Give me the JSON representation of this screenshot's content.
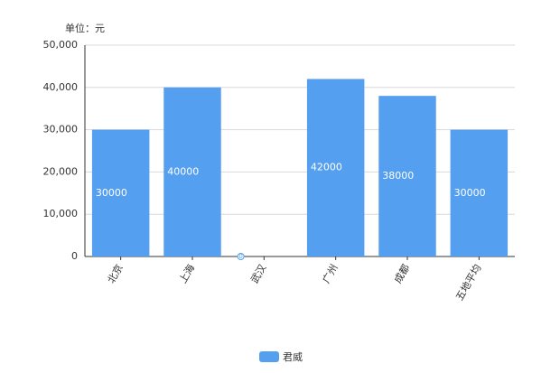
{
  "chart_data": {
    "type": "bar",
    "y_label": "单位：元",
    "categories": [
      "北京",
      "上海",
      "武汉",
      "广州",
      "成都",
      "五地平均"
    ],
    "series": [
      {
        "name": "君威",
        "color": "#559ff0",
        "values": [
          30000,
          40000,
          0,
          42000,
          38000,
          30000
        ]
      }
    ],
    "ylim": [
      0,
      50000
    ],
    "yticks": [
      0,
      {
        "value": 10000,
        "label": "10,000"
      },
      {
        "value": 20000,
        "label": "20,000"
      },
      {
        "value": 30000,
        "label": "30,000"
      },
      {
        "value": 40000,
        "label": "40,000"
      },
      {
        "value": 50000,
        "label": "50,000"
      }
    ],
    "grid": true,
    "legend": "bottom"
  }
}
